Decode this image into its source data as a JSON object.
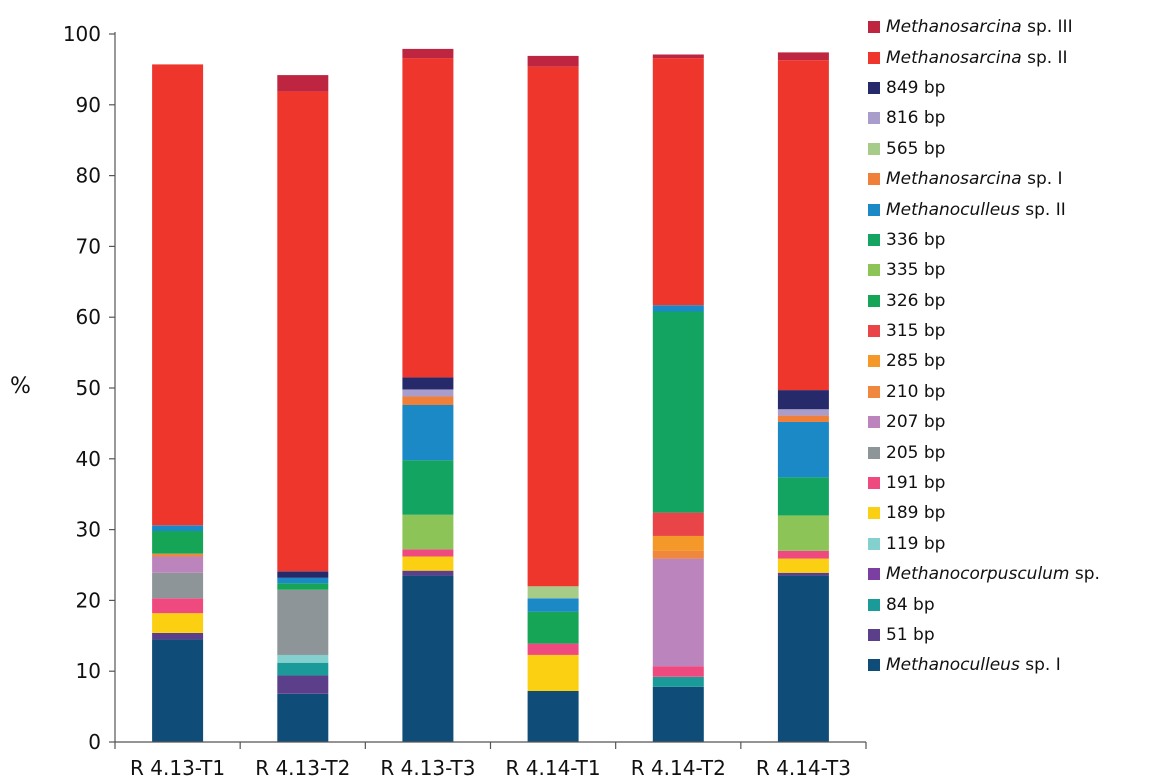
{
  "chart_data": {
    "type": "bar",
    "stacked": true,
    "title": "",
    "xlabel": "",
    "ylabel": "%",
    "ylim": [
      0,
      100
    ],
    "yticks": [
      0,
      10,
      20,
      30,
      40,
      50,
      60,
      70,
      80,
      90,
      100
    ],
    "grid": false,
    "legend_position": "right",
    "categories": [
      "R 4.13-T1",
      "R 4.13-T2",
      "R 4.13-T3",
      "R 4.14-T1",
      "R 4.14-T2",
      "R 4.14-T3"
    ],
    "series": [
      {
        "name": "Methanoculleus sp. I",
        "genus": "Methanoculleus",
        "suffix": " sp. I",
        "color": "#0f4d78",
        "values": [
          14.5,
          6.8,
          23.5,
          7.2,
          7.8,
          23.5
        ]
      },
      {
        "name": "51 bp",
        "genus": "",
        "suffix": "51 bp",
        "color": "#5b3f8a",
        "values": [
          0.9,
          2.6,
          0.7,
          0,
          0,
          0.4
        ]
      },
      {
        "name": "84 bp",
        "genus": "",
        "suffix": "84 bp",
        "color": "#1a9a98",
        "values": [
          0,
          1.8,
          0,
          0,
          1.4,
          0
        ]
      },
      {
        "name": "Methanocorpusculum sp.",
        "genus": "Methanocorpusculum",
        "suffix": " sp.",
        "color": "#7a3fa0",
        "values": [
          0,
          0,
          0,
          0,
          0,
          0
        ]
      },
      {
        "name": "119 bp",
        "genus": "",
        "suffix": "119 bp",
        "color": "#84d0cf",
        "values": [
          0,
          1.1,
          0,
          0,
          0,
          0
        ]
      },
      {
        "name": "189 bp",
        "genus": "",
        "suffix": "189 bp",
        "color": "#fcd012",
        "values": [
          2.8,
          0,
          2.0,
          5.1,
          0,
          2.0
        ]
      },
      {
        "name": "191 bp",
        "genus": "",
        "suffix": "191 bp",
        "color": "#ef4a80",
        "values": [
          2.1,
          0,
          1.0,
          1.6,
          1.5,
          1.1
        ]
      },
      {
        "name": "205 bp",
        "genus": "",
        "suffix": "205 bp",
        "color": "#8e9598",
        "values": [
          3.6,
          9.2,
          0,
          0,
          0,
          0
        ]
      },
      {
        "name": "207 bp",
        "genus": "",
        "suffix": "207 bp",
        "color": "#bc84bc",
        "values": [
          2.3,
          0,
          0,
          0,
          15.2,
          0
        ]
      },
      {
        "name": "210 bp",
        "genus": "",
        "suffix": "210 bp",
        "color": "#f0873f",
        "values": [
          0.4,
          0,
          0,
          0,
          1.1,
          0
        ]
      },
      {
        "name": "285 bp",
        "genus": "",
        "suffix": "285 bp",
        "color": "#f39829",
        "values": [
          0,
          0,
          0,
          0,
          2.1,
          0
        ]
      },
      {
        "name": "315 bp",
        "genus": "",
        "suffix": "315 bp",
        "color": "#e94549",
        "values": [
          0,
          0,
          0,
          0,
          3.3,
          0
        ]
      },
      {
        "name": "326 bp",
        "genus": "",
        "suffix": "326 bp",
        "color": "#16a556",
        "values": [
          3.2,
          0.9,
          0,
          4.5,
          0,
          0
        ]
      },
      {
        "name": "335 bp",
        "genus": "",
        "suffix": "335 bp",
        "color": "#8dc457",
        "values": [
          0,
          0,
          4.9,
          0,
          0,
          5.0
        ]
      },
      {
        "name": "336 bp",
        "genus": "",
        "suffix": "336 bp",
        "color": "#13a462",
        "values": [
          0,
          0,
          7.7,
          0,
          28.4,
          5.4
        ]
      },
      {
        "name": "Methanoculleus sp. II",
        "genus": "Methanoculleus",
        "suffix": " sp. II",
        "color": "#1a89c6",
        "values": [
          0.8,
          0.8,
          7.8,
          1.9,
          0.9,
          7.8
        ]
      },
      {
        "name": "Methanosarcina sp. I",
        "genus": "Methanosarcina",
        "suffix": " sp. I",
        "color": "#f07f3a",
        "values": [
          0,
          0,
          1.2,
          0,
          0,
          0.9
        ]
      },
      {
        "name": "565 bp",
        "genus": "",
        "suffix": "565 bp",
        "color": "#a7cc8a",
        "values": [
          0,
          0,
          0,
          1.7,
          0,
          0
        ]
      },
      {
        "name": "816 bp",
        "genus": "",
        "suffix": "816 bp",
        "color": "#a99dcb",
        "values": [
          0,
          0,
          1.0,
          0,
          0,
          0.9
        ]
      },
      {
        "name": "849 bp",
        "genus": "",
        "suffix": "849 bp",
        "color": "#262a6b",
        "values": [
          0,
          0.9,
          1.7,
          0,
          0,
          2.7
        ]
      },
      {
        "name": "Methanosarcina sp. II",
        "genus": "Methanosarcina",
        "suffix": " sp. II",
        "color": "#ef362d",
        "values": [
          65.1,
          67.8,
          45.1,
          73.4,
          34.9,
          46.6
        ]
      },
      {
        "name": "Methanosarcina sp. III",
        "genus": "Methanosarcina",
        "suffix": " sp. III",
        "color": "#bd2540",
        "values": [
          0,
          2.3,
          1.3,
          1.5,
          0.5,
          1.1
        ]
      }
    ]
  }
}
